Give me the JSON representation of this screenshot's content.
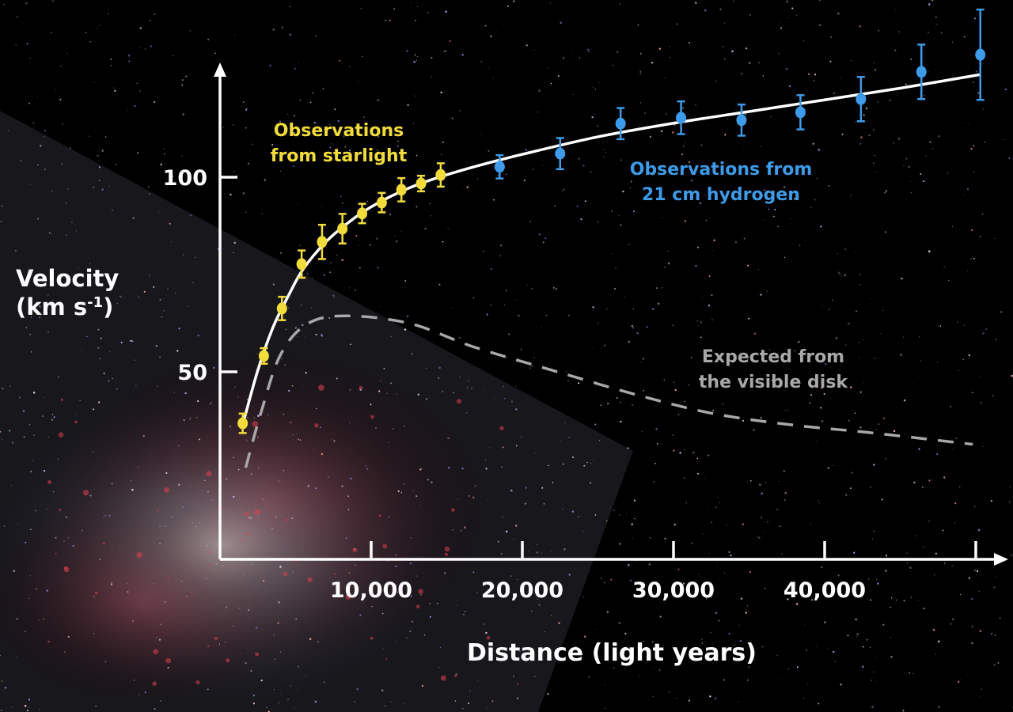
{
  "chart_data": {
    "type": "scatter",
    "xlabel": "Distance (light years)",
    "ylabel_line1": "Velocity",
    "ylabel_line2": "(km s-1)",
    "ylabel_unit_base": "(km s",
    "ylabel_unit_exp": "-1",
    "ylabel_unit_close": ")",
    "xlim": [
      0,
      51000
    ],
    "ylim": [
      3.5,
      131
    ],
    "x_ticks": [
      10000,
      20000,
      30000,
      40000,
      50000
    ],
    "x_tick_labels": [
      "10,000",
      "20,000",
      "30,000",
      "40,000",
      ""
    ],
    "y_ticks": [
      50,
      100
    ],
    "y_tick_labels": [
      "50",
      "100"
    ],
    "grid": false,
    "colors": {
      "starlight": "#f2dc3c",
      "hydrogen": "#3d9be9",
      "fit": "#ffffff",
      "expected": "#a8a8a8",
      "axes": "#ffffff"
    },
    "series": [
      {
        "name": "Observations from starlight",
        "label_line1": "Observations",
        "label_line2": "from starlight",
        "style": "points-errorbars",
        "x": [
          1500,
          2900,
          4100,
          5400,
          6750,
          8100,
          9400,
          10700,
          12000,
          13300,
          14600
        ],
        "y": [
          38.4,
          55.7,
          67.9,
          79.3,
          85.0,
          88.4,
          92.3,
          95.1,
          98.4,
          100.0,
          102.2
        ],
        "err": [
          2.5,
          2.0,
          3.0,
          3.5,
          4.4,
          3.8,
          2.5,
          2.5,
          3.0,
          2.0,
          3.0
        ]
      },
      {
        "name": "Observations from 21 cm hydrogen",
        "label_line1": "Observations from",
        "label_line2": "21 cm hydrogen",
        "style": "points-errorbars",
        "x": [
          18500,
          22500,
          26500,
          30500,
          34500,
          38400,
          42400,
          46400,
          50300
        ],
        "y": [
          104.3,
          107.7,
          115.4,
          116.9,
          116.3,
          118.3,
          121.7,
          128.7,
          133.1
        ],
        "err": [
          3.0,
          4.0,
          4.0,
          4.2,
          4.0,
          4.4,
          5.7,
          7.0,
          11.6
        ]
      },
      {
        "style": "line",
        "x": [
          1500,
          2500,
          3500,
          4500,
          5500,
          7000,
          8500,
          10000,
          12000,
          14000,
          17000,
          20000,
          25000,
          30000,
          35000,
          40000,
          45000,
          50300
        ],
        "y": [
          38,
          52,
          63,
          71,
          78,
          85,
          90,
          94,
          98,
          101,
          104.5,
          107.5,
          112,
          115.5,
          118.5,
          121.5,
          124.5,
          128
        ]
      },
      {
        "name": "Expected from the visible disk",
        "label_line1": "Expected from",
        "label_line2": "the visible disk",
        "style": "dashed",
        "x": [
          1700,
          2700,
          4000,
          5800,
          8400,
          12600,
          16800,
          22000,
          27300,
          32500,
          37800,
          43000,
          49800
        ],
        "y": [
          27,
          41,
          56,
          64,
          66,
          64,
          58,
          52,
          46,
          41,
          38,
          36,
          33
        ]
      }
    ]
  }
}
